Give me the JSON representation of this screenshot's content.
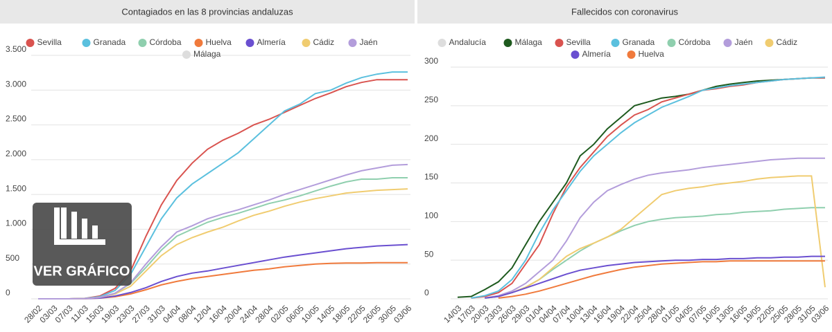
{
  "chart_data": [
    {
      "type": "line",
      "title": "Contagiados en las 8 provincias andaluzas",
      "categories": [
        "28/02",
        "03/03",
        "07/03",
        "11/03",
        "15/03",
        "19/03",
        "23/03",
        "27/03",
        "31/03",
        "04/04",
        "08/04",
        "12/04",
        "16/04",
        "20/04",
        "24/04",
        "28/04",
        "02/05",
        "06/05",
        "10/05",
        "14/05",
        "18/05",
        "22/05",
        "26/05",
        "30/05",
        "03/06"
      ],
      "ylim": [
        0,
        3500
      ],
      "yticks": [
        0,
        500,
        {
          "value": 1000,
          "label": "1.000"
        },
        {
          "value": 1500,
          "label": "1.500"
        },
        {
          "value": 2000,
          "label": "2.000"
        },
        {
          "value": 2500,
          "label": "2.500"
        },
        {
          "value": 3000,
          "label": "3.000"
        },
        {
          "value": 3500,
          "label": "3.500"
        }
      ],
      "grid": true,
      "series": [
        {
          "name": "Sevilla",
          "color": "#d9534f",
          "values": [
            0,
            0,
            0,
            5,
            40,
            150,
            400,
            900,
            1350,
            1700,
            1950,
            2150,
            2280,
            2380,
            2500,
            2580,
            2680,
            2780,
            2880,
            2960,
            3050,
            3110,
            3150,
            3150,
            3150
          ]
        },
        {
          "name": "Granada",
          "color": "#5bc0de",
          "values": [
            0,
            0,
            0,
            5,
            30,
            120,
            350,
            750,
            1150,
            1450,
            1650,
            1800,
            1950,
            2100,
            2300,
            2500,
            2700,
            2800,
            2950,
            3000,
            3100,
            3180,
            3230,
            3260,
            3260
          ]
        },
        {
          "name": "Córdoba",
          "color": "#8fcfae",
          "values": [
            0,
            0,
            0,
            3,
            20,
            80,
            220,
            450,
            700,
            900,
            1000,
            1100,
            1170,
            1230,
            1300,
            1370,
            1420,
            1480,
            1550,
            1620,
            1680,
            1720,
            1720,
            1740,
            1740
          ]
        },
        {
          "name": "Huelva",
          "color": "#f07a3c",
          "values": [
            0,
            0,
            0,
            2,
            10,
            30,
            70,
            130,
            200,
            250,
            290,
            320,
            350,
            380,
            410,
            430,
            460,
            480,
            500,
            510,
            515,
            515,
            520,
            520,
            520
          ]
        },
        {
          "name": "Almería",
          "color": "#6a4fd0",
          "values": [
            0,
            0,
            0,
            2,
            10,
            40,
            90,
            160,
            250,
            320,
            370,
            400,
            440,
            480,
            520,
            560,
            600,
            630,
            660,
            690,
            720,
            740,
            760,
            770,
            780
          ]
        },
        {
          "name": "Cádiz",
          "color": "#f0cc70",
          "values": [
            0,
            0,
            0,
            3,
            20,
            70,
            180,
            400,
            620,
            780,
            880,
            960,
            1030,
            1120,
            1200,
            1260,
            1330,
            1390,
            1440,
            1480,
            1520,
            1540,
            1560,
            1570,
            1580
          ]
        },
        {
          "name": "Jaén",
          "color": "#b39ddb",
          "values": [
            0,
            0,
            0,
            3,
            20,
            80,
            230,
            500,
            750,
            960,
            1050,
            1150,
            1220,
            1280,
            1350,
            1420,
            1500,
            1570,
            1640,
            1710,
            1780,
            1840,
            1880,
            1920,
            1930
          ]
        },
        {
          "name": "Málaga",
          "color": "#dddddd",
          "values": [
            null,
            null,
            null,
            null,
            null,
            null,
            null,
            null,
            null,
            null,
            null,
            null,
            null,
            null,
            null,
            null,
            null,
            null,
            null,
            null,
            null,
            null,
            null,
            null,
            null
          ]
        }
      ]
    },
    {
      "type": "line",
      "title": "Fallecidos con coronavirus",
      "categories": [
        "14/03",
        "17/03",
        "20/03",
        "23/03",
        "26/03",
        "29/03",
        "01/04",
        "04/04",
        "07/04",
        "10/04",
        "13/04",
        "16/04",
        "19/04",
        "22/04",
        "25/04",
        "28/04",
        "01/05",
        "04/05",
        "07/05",
        "10/05",
        "13/05",
        "16/05",
        "19/05",
        "22/05",
        "25/05",
        "28/05",
        "31/05",
        "03/06"
      ],
      "ylim": [
        0,
        300
      ],
      "yticks": [
        0,
        50,
        100,
        150,
        200,
        250,
        300
      ],
      "grid": true,
      "series": [
        {
          "name": "Andalucía",
          "color": "#dddddd",
          "values": [
            null,
            null,
            null,
            null,
            null,
            null,
            null,
            null,
            null,
            null,
            null,
            null,
            null,
            null,
            null,
            null,
            null,
            null,
            null,
            null,
            null,
            null,
            null,
            null,
            null,
            null,
            null,
            null
          ]
        },
        {
          "name": "Málaga",
          "color": "#1e5a1e",
          "values": [
            2,
            3,
            12,
            22,
            40,
            70,
            100,
            125,
            150,
            185,
            200,
            220,
            235,
            250,
            255,
            260,
            262,
            265,
            270,
            275,
            278,
            280,
            282,
            283,
            284,
            285,
            286,
            286
          ]
        },
        {
          "name": "Sevilla",
          "color": "#d9534f",
          "values": [
            null,
            1,
            3,
            8,
            20,
            45,
            70,
            110,
            145,
            170,
            190,
            210,
            225,
            238,
            245,
            255,
            260,
            265,
            270,
            272,
            275,
            277,
            280,
            282,
            284,
            285,
            286,
            286
          ]
        },
        {
          "name": "Granada",
          "color": "#5bc0de",
          "values": [
            null,
            1,
            4,
            10,
            25,
            50,
            85,
            115,
            140,
            165,
            185,
            200,
            215,
            228,
            238,
            248,
            255,
            262,
            270,
            273,
            276,
            278,
            280,
            282,
            284,
            285,
            286,
            287
          ]
        },
        {
          "name": "Córdoba",
          "color": "#8fcfae",
          "values": [
            null,
            null,
            1,
            3,
            8,
            15,
            25,
            38,
            50,
            62,
            72,
            80,
            88,
            95,
            100,
            103,
            105,
            106,
            107,
            109,
            110,
            112,
            113,
            114,
            116,
            117,
            118,
            118
          ]
        },
        {
          "name": "Jaén",
          "color": "#b39ddb",
          "values": [
            null,
            null,
            1,
            4,
            10,
            20,
            35,
            50,
            75,
            105,
            125,
            140,
            148,
            155,
            160,
            163,
            165,
            167,
            170,
            172,
            174,
            176,
            178,
            180,
            181,
            182,
            182,
            182
          ]
        },
        {
          "name": "Cádiz",
          "color": "#f0cc70",
          "values": [
            null,
            null,
            1,
            3,
            8,
            15,
            25,
            40,
            55,
            65,
            72,
            80,
            90,
            105,
            120,
            135,
            140,
            143,
            145,
            148,
            150,
            152,
            155,
            157,
            158,
            159,
            159,
            15
          ]
        },
        {
          "name": "Almería",
          "color": "#6a4fd0",
          "values": [
            null,
            null,
            1,
            3,
            8,
            14,
            20,
            26,
            32,
            37,
            40,
            43,
            45,
            47,
            48,
            49,
            50,
            50,
            51,
            51,
            52,
            52,
            53,
            53,
            54,
            54,
            55,
            55
          ]
        },
        {
          "name": "Huelva",
          "color": "#f07a3c",
          "values": [
            null,
            null,
            null,
            1,
            3,
            6,
            10,
            15,
            20,
            25,
            30,
            34,
            38,
            41,
            43,
            45,
            46,
            47,
            48,
            48,
            49,
            49,
            49,
            49,
            49,
            49,
            49,
            49
          ]
        }
      ]
    }
  ],
  "button": {
    "label": "VER GRÁFICO"
  }
}
